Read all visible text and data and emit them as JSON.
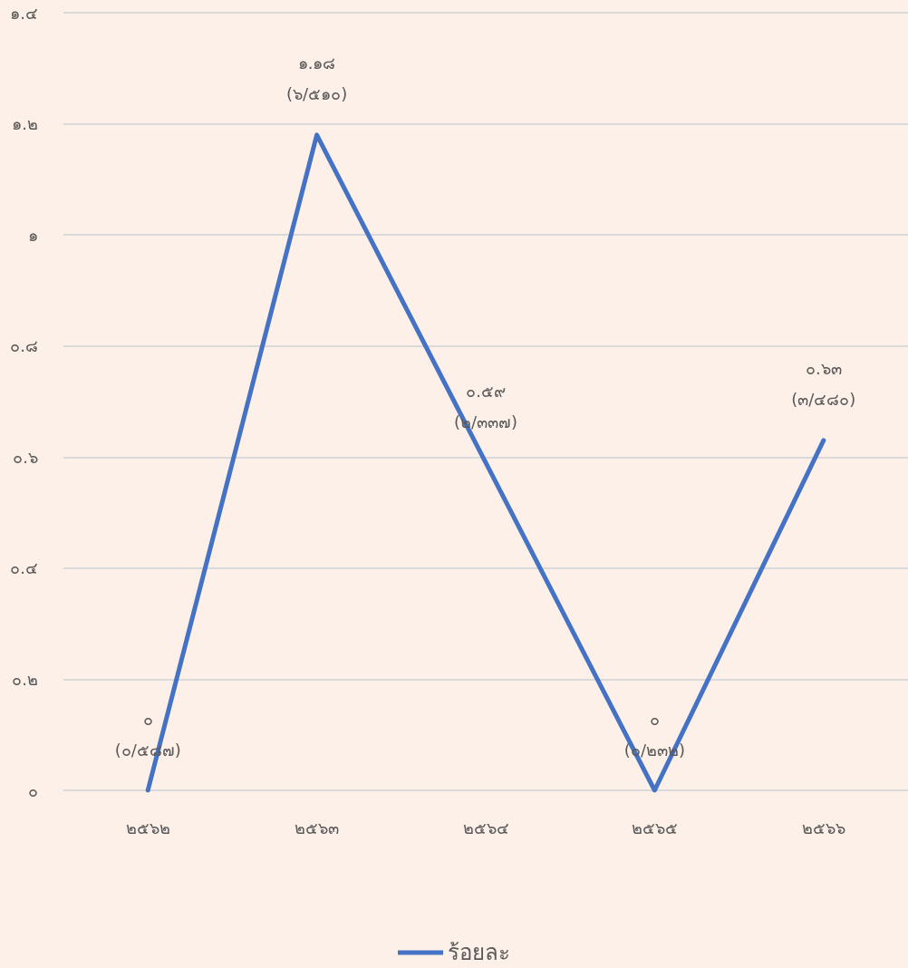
{
  "chart_data": {
    "type": "line",
    "categories": [
      "๒๕๖๒",
      "๒๕๖๓",
      "๒๕๖๔",
      "๒๕๖๕",
      "๒๕๖๖"
    ],
    "series": [
      {
        "name": "ร้อยละ",
        "color": "#4472c4",
        "values": [
          0,
          1.18,
          0.59,
          0,
          0.63
        ],
        "value_labels": [
          "๐\n(๐/๕๘๗)",
          "๑.๑๘\n(๖/๕๑๐)",
          "๐.๕๙\n(๒/๓๓๗)",
          "๐\n(๐/๒๓๒)",
          "๐.๖๓\n(๓/๔๘๐)"
        ]
      }
    ],
    "ylim": [
      0,
      1.4
    ],
    "yticks": [
      {
        "value": 0,
        "label": "๐"
      },
      {
        "value": 0.2,
        "label": "๐.๒"
      },
      {
        "value": 0.4,
        "label": "๐.๔"
      },
      {
        "value": 0.6,
        "label": "๐.๖"
      },
      {
        "value": 0.8,
        "label": "๐.๘"
      },
      {
        "value": 1,
        "label": "๑"
      },
      {
        "value": 1.2,
        "label": "๑.๒"
      },
      {
        "value": 1.4,
        "label": "๑.๔"
      }
    ],
    "grid": "y",
    "legend": "bottom",
    "marker": "none",
    "line_style": "solid"
  }
}
